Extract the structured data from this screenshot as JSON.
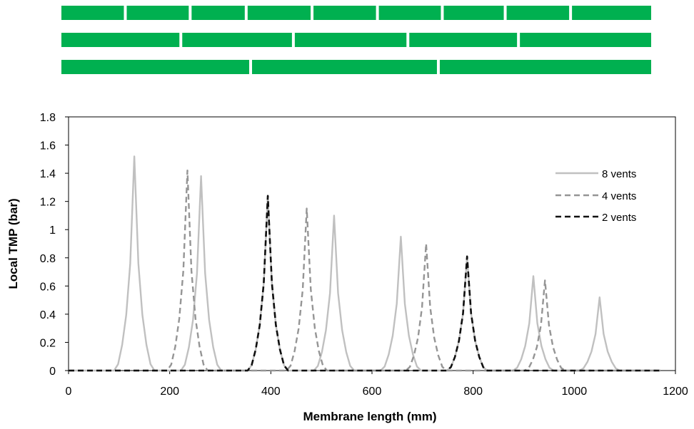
{
  "colors": {
    "membrane": "#00b050",
    "vent_gap": "#ffffff",
    "series_8": "#c0c0c0",
    "series_4": "#959595",
    "series_2": "#101010"
  },
  "membrane_diagram": {
    "length_mm": 1200,
    "strips": [
      {
        "vents": 8,
        "vent_positions_mm": [
          130,
          262,
          376,
          510,
          643,
          775,
          903,
          1036
        ]
      },
      {
        "vents": 4,
        "vent_positions_mm": [
          243,
          472,
          705,
          930
        ]
      },
      {
        "vents": 2,
        "vent_positions_mm": [
          385,
          767
        ]
      }
    ]
  },
  "chart_data": {
    "type": "line",
    "title": "",
    "xlabel": "Membrane length (mm)",
    "ylabel": "Local TMP (bar)",
    "xlim": [
      0,
      1200
    ],
    "ylim": [
      0,
      1.8
    ],
    "xticks": [
      0,
      200,
      400,
      600,
      800,
      1000,
      1200
    ],
    "yticks": [
      0,
      0.2,
      0.4,
      0.6,
      0.8,
      1,
      1.2,
      1.4,
      1.6,
      1.8
    ],
    "grid": false,
    "legend_position": "right",
    "series": [
      {
        "name": "8 vents",
        "line_style": "solid",
        "peaks": [
          {
            "x": 130,
            "y": 1.52
          },
          {
            "x": 262,
            "y": 1.38
          },
          {
            "x": 394,
            "y": 1.24
          },
          {
            "x": 525,
            "y": 1.1
          },
          {
            "x": 657,
            "y": 0.95
          },
          {
            "x": 788,
            "y": 0.81
          },
          {
            "x": 919,
            "y": 0.67
          },
          {
            "x": 1050,
            "y": 0.52
          }
        ]
      },
      {
        "name": "4 vents",
        "line_style": "dashed",
        "peaks": [
          {
            "x": 235,
            "y": 1.42
          },
          {
            "x": 471,
            "y": 1.15
          },
          {
            "x": 707,
            "y": 0.9
          },
          {
            "x": 942,
            "y": 0.64
          }
        ]
      },
      {
        "name": "2 vents",
        "line_style": "dashed",
        "peaks": [
          {
            "x": 394,
            "y": 1.24
          },
          {
            "x": 788,
            "y": 0.81
          }
        ]
      }
    ]
  }
}
